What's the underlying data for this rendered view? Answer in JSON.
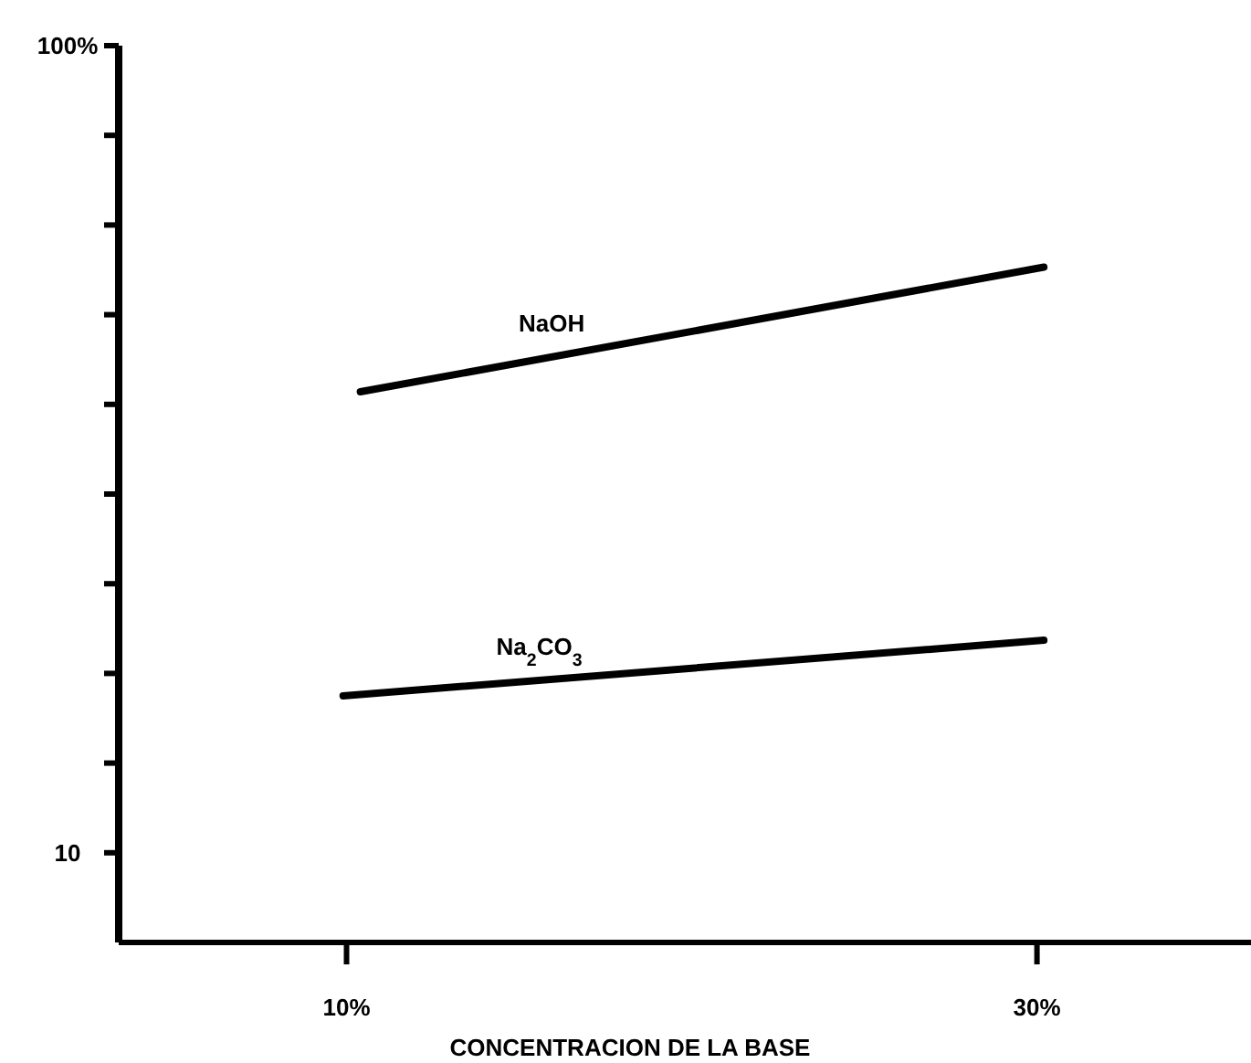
{
  "chart_data": {
    "type": "line",
    "xlabel": "CONCENTRACION DE LA BASE",
    "xlim": [
      3.4,
      36.2
    ],
    "xticks": [
      {
        "value": 10,
        "label": "10%"
      },
      {
        "value": 30,
        "label": "30%"
      }
    ],
    "ylim": [
      0,
      100
    ],
    "yticks": [
      {
        "value": 10,
        "label": "10"
      },
      {
        "value": 20,
        "label": null
      },
      {
        "value": 30,
        "label": null
      },
      {
        "value": 40,
        "label": null
      },
      {
        "value": 50,
        "label": null
      },
      {
        "value": 60,
        "label": null
      },
      {
        "value": 70,
        "label": null
      },
      {
        "value": 80,
        "label": null
      },
      {
        "value": 90,
        "label": null
      },
      {
        "value": 100,
        "label": "100%"
      }
    ],
    "series": [
      {
        "name": "NaOH",
        "color": "#000000",
        "x": [
          10.4,
          30.2
        ],
        "values": [
          61.4,
          75.3
        ]
      },
      {
        "name": "Na$_{2}$CO$_{3}$",
        "color": "#000000",
        "x": [
          9.9,
          30.2
        ],
        "values": [
          27.5,
          33.7
        ]
      }
    ],
    "grid": false,
    "marker": "none",
    "line_style": "solid"
  }
}
